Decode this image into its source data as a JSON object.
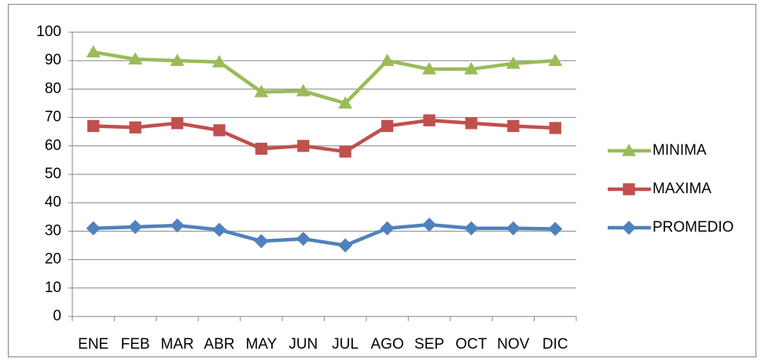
{
  "chart_data": {
    "type": "line",
    "categories": [
      "ENE",
      "FEB",
      "MAR",
      "ABR",
      "MAY",
      "JUN",
      "JUL",
      "AGO",
      "SEP",
      "OCT",
      "NOV",
      "DIC"
    ],
    "series": [
      {
        "name": "MINIMA",
        "color": "#9bbb59",
        "marker": "triangle",
        "values": [
          93,
          90.5,
          90,
          89.5,
          79,
          79.3,
          75,
          90,
          87,
          87,
          89,
          90
        ]
      },
      {
        "name": "MAXIMA",
        "color": "#c0504d",
        "marker": "square",
        "values": [
          67,
          66.5,
          68,
          65.5,
          59,
          60,
          58,
          67,
          69,
          68,
          67,
          66.3
        ]
      },
      {
        "name": "PROMEDIO",
        "color": "#4f81bd",
        "marker": "diamond",
        "values": [
          31,
          31.5,
          32,
          30.5,
          26.5,
          27.3,
          25,
          31,
          32.3,
          31,
          31,
          30.8
        ]
      }
    ],
    "ylim": [
      0,
      100
    ],
    "yticks": [
      0,
      10,
      20,
      30,
      40,
      50,
      60,
      70,
      80,
      90,
      100
    ],
    "grid": true,
    "legend": "right"
  }
}
